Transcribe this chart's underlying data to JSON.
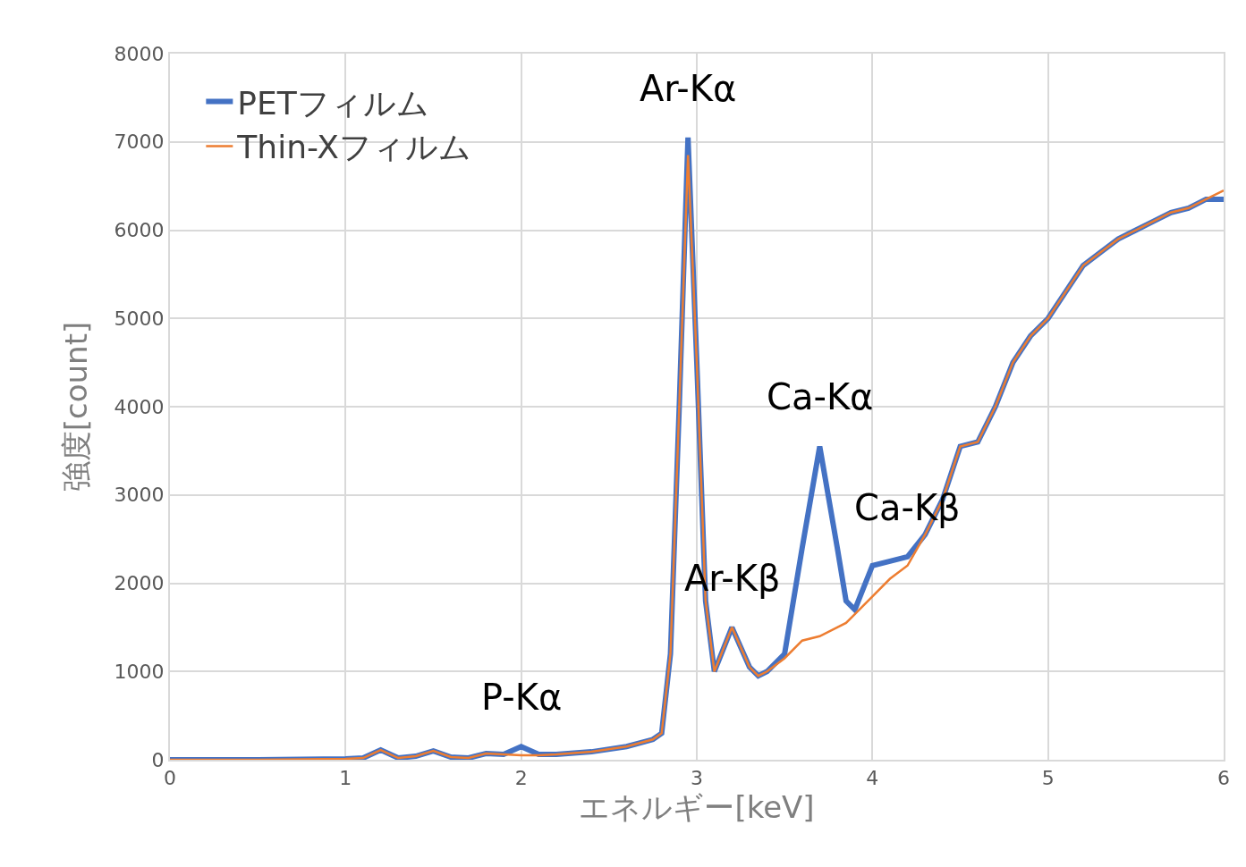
{
  "chart_data": {
    "type": "line",
    "xlabel": "エネルギー[keV]",
    "ylabel": "強度[count]",
    "xlim": [
      0,
      6
    ],
    "xticks": [
      0,
      1,
      2,
      3,
      4,
      5,
      6
    ],
    "ylim": [
      0,
      8000
    ],
    "yticks": [
      0,
      1000,
      2000,
      3000,
      4000,
      5000,
      6000,
      7000,
      8000
    ],
    "grid": true,
    "legend": "top left",
    "marker": "none",
    "line_style": "solid",
    "series": [
      {
        "name": "PETフィルム",
        "color": "#4472c4",
        "x": [
          0,
          0.5,
          1.0,
          1.1,
          1.2,
          1.3,
          1.4,
          1.5,
          1.6,
          1.7,
          1.8,
          1.9,
          2.0,
          2.1,
          2.2,
          2.4,
          2.6,
          2.75,
          2.8,
          2.85,
          2.9,
          2.95,
          3.0,
          3.05,
          3.1,
          3.2,
          3.3,
          3.35,
          3.4,
          3.5,
          3.6,
          3.7,
          3.8,
          3.85,
          3.9,
          4.0,
          4.1,
          4.2,
          4.3,
          4.4,
          4.5,
          4.6,
          4.7,
          4.8,
          4.9,
          5.0,
          5.1,
          5.2,
          5.3,
          5.4,
          5.5,
          5.6,
          5.7,
          5.8,
          5.9,
          6.0
        ],
        "values": [
          0,
          0,
          10,
          20,
          110,
          20,
          40,
          100,
          30,
          20,
          70,
          60,
          150,
          60,
          60,
          90,
          150,
          230,
          300,
          1200,
          4000,
          7050,
          4500,
          1800,
          1000,
          1500,
          1050,
          950,
          1000,
          1200,
          2400,
          3550,
          2400,
          1800,
          1700,
          2200,
          2250,
          2300,
          2550,
          2950,
          3550,
          3600,
          4000,
          4500,
          4800,
          5000,
          5300,
          5600,
          5750,
          5900,
          6000,
          6100,
          6200,
          6250,
          6350,
          6350
        ]
      },
      {
        "name": "Thin-Xフィルム",
        "color": "#ed7d31",
        "x": [
          0,
          0.5,
          1.0,
          1.1,
          1.2,
          1.3,
          1.4,
          1.5,
          1.6,
          1.7,
          1.8,
          1.9,
          2.0,
          2.1,
          2.2,
          2.4,
          2.6,
          2.75,
          2.8,
          2.85,
          2.9,
          2.95,
          3.0,
          3.05,
          3.1,
          3.2,
          3.3,
          3.35,
          3.4,
          3.5,
          3.6,
          3.7,
          3.8,
          3.85,
          3.9,
          4.0,
          4.1,
          4.2,
          4.3,
          4.4,
          4.5,
          4.6,
          4.7,
          4.8,
          4.9,
          5.0,
          5.1,
          5.2,
          5.3,
          5.4,
          5.5,
          5.6,
          5.7,
          5.8,
          5.9,
          6.0
        ],
        "values": [
          0,
          0,
          10,
          20,
          110,
          20,
          40,
          100,
          30,
          20,
          70,
          60,
          50,
          50,
          60,
          90,
          150,
          230,
          300,
          1200,
          4000,
          6850,
          4500,
          1800,
          1000,
          1500,
          1050,
          950,
          1000,
          1150,
          1350,
          1400,
          1500,
          1550,
          1650,
          1850,
          2050,
          2200,
          2550,
          2950,
          3550,
          3600,
          4000,
          4500,
          4800,
          5000,
          5300,
          5600,
          5750,
          5900,
          6000,
          6100,
          6200,
          6250,
          6350,
          6450
        ]
      }
    ],
    "annotations": [
      {
        "text": "Ar-Kα",
        "x": 2.95,
        "y": 7050
      },
      {
        "text": "Ar-Kβ",
        "x": 3.2,
        "y": 1500
      },
      {
        "text": "Ca-Kα",
        "x": 3.7,
        "y": 3550
      },
      {
        "text": "Ca-Kβ",
        "x": 4.2,
        "y": 2300
      },
      {
        "text": "P-Kα",
        "x": 2.0,
        "y": 150
      }
    ]
  }
}
